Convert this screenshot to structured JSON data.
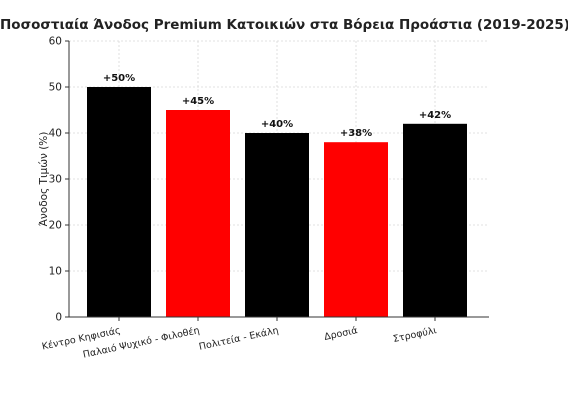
{
  "chart_data": {
    "type": "bar",
    "title": "Ποσοστιαία Άνοδος Premium Κατοικιών στα Βόρεια Προάστια (2019-2025)",
    "xlabel": "",
    "ylabel": "Άνοδος Τιμών (%)",
    "categories": [
      "Κέντρο Κηφισιάς",
      "Παλαιό Ψυχικό - Φιλοθέη",
      "Πολιτεία - Εκάλη",
      "Δροσιά",
      "Στροφύλι"
    ],
    "values": [
      50,
      45,
      40,
      38,
      42
    ],
    "data_labels": [
      "+50%",
      "+45%",
      "+40%",
      "+38%",
      "+42%"
    ],
    "bar_colors": [
      "#000000",
      "#ff0000",
      "#000000",
      "#ff0000",
      "#000000"
    ],
    "ylim": [
      0,
      60
    ],
    "yticks": [
      0,
      10,
      20,
      30,
      40,
      50,
      60
    ],
    "grid": true,
    "legend": "none"
  }
}
